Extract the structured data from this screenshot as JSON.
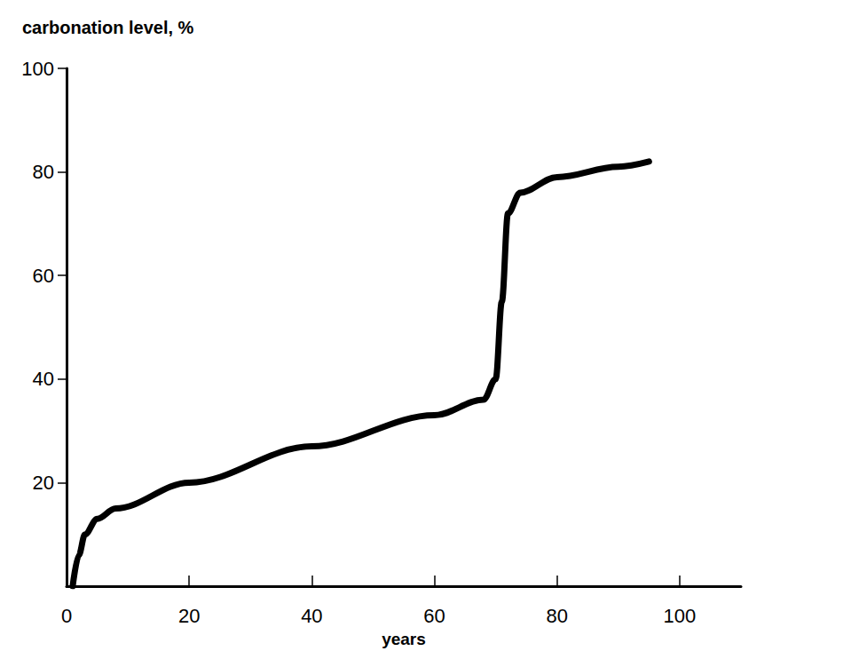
{
  "chart_data": {
    "type": "line",
    "x_label": "years",
    "y_label": "carbonation level, %",
    "x": [
      1,
      2,
      3,
      5,
      8,
      20,
      40,
      60,
      68,
      70,
      71,
      72,
      74,
      80,
      90,
      95
    ],
    "values": [
      0,
      6,
      10,
      13,
      15,
      20,
      27,
      33,
      36,
      40,
      55,
      72,
      76,
      79,
      81,
      82
    ],
    "color": "#000000",
    "xlim": [
      0,
      110
    ],
    "xticks": [
      0,
      20,
      40,
      60,
      80,
      100
    ],
    "ylim": [
      0,
      100
    ],
    "yticks": [
      20,
      40,
      60,
      80,
      100
    ],
    "grid": false
  }
}
